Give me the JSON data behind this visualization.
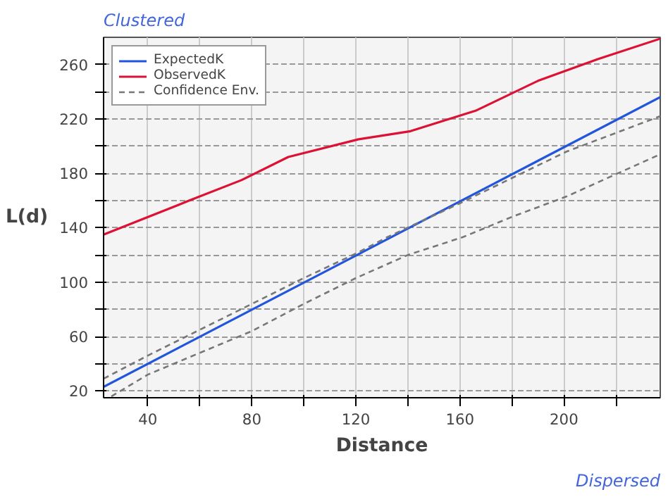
{
  "chart_data": {
    "type": "line",
    "xlabel": "Distance",
    "ylabel": "L(d)",
    "annotations": [
      "Clustered",
      "Dispersed"
    ],
    "xlim": [
      23,
      237
    ],
    "ylim": [
      15,
      280
    ],
    "xticks": [
      40,
      {
        "value": 60,
        "label": null
      },
      80,
      {
        "value": 100,
        "label": null
      },
      120,
      {
        "value": 140,
        "label": null
      },
      160,
      {
        "value": 180,
        "label": null
      },
      200,
      {
        "value": 220,
        "label": null
      }
    ],
    "yticks": [
      20,
      {
        "value": 40,
        "label": null
      },
      60,
      {
        "value": 80,
        "label": null
      },
      100,
      {
        "value": 120,
        "label": null
      },
      140,
      {
        "value": 160,
        "label": null
      },
      180,
      {
        "value": 200,
        "label": null
      },
      220,
      {
        "value": 240,
        "label": null
      },
      260
    ],
    "grid": true,
    "legend": "top left",
    "line_style": "solid",
    "series": [
      {
        "name": "ExpectedK",
        "color": "#2255dd",
        "x": [
          23,
          237
        ],
        "values": [
          23,
          236
        ]
      },
      {
        "name": "ObservedK",
        "color": "#dd1133",
        "x": [
          23,
          56,
          76,
          94,
          121,
          141,
          166,
          190,
          213,
          237
        ],
        "values": [
          135,
          160,
          175,
          192,
          205,
          211,
          226,
          248,
          264,
          279
        ]
      },
      {
        "name": "Confidence Env.",
        "color": "#777777",
        "line_style": "dashed",
        "x": [
          23,
          40,
          60,
          80,
          100,
          120,
          132,
          160,
          201,
          237
        ],
        "values": [
          29,
          46,
          65,
          84,
          103,
          121,
          133,
          158,
          196,
          222
        ]
      },
      {
        "color": "#777777",
        "line_style": "dashed",
        "x": [
          26,
          40,
          50,
          70,
          80,
          100,
          120,
          140,
          161,
          180,
          201,
          237
        ],
        "values": [
          16,
          32,
          40,
          56,
          64,
          84,
          103,
          120,
          133,
          148,
          163,
          194
        ]
      }
    ]
  }
}
